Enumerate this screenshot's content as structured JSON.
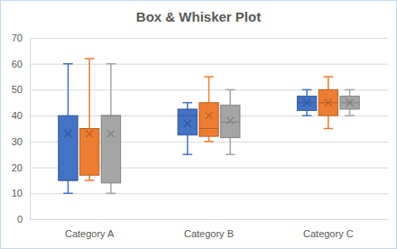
{
  "chart_data": {
    "type": "box",
    "title": "Box & Whisker Plot",
    "categories": [
      "Category A",
      "Category B",
      "Category C"
    ],
    "series": [
      {
        "color": "#4472c4",
        "values": [
          {
            "min": 10,
            "q1": 15,
            "median": 15,
            "q3": 40,
            "max": 60,
            "mean": 33
          },
          {
            "min": 25,
            "q1": 32.5,
            "median": 40,
            "q3": 42.5,
            "max": 45,
            "mean": 37
          },
          {
            "min": 40,
            "q1": 42,
            "median": 45,
            "q3": 47.5,
            "max": 50,
            "mean": 45
          }
        ]
      },
      {
        "color": "#ed7d31",
        "values": [
          {
            "min": 15,
            "q1": 17,
            "median": 35,
            "q3": 35,
            "max": 62,
            "mean": 33
          },
          {
            "min": 30,
            "q1": 32,
            "median": 35,
            "q3": 45,
            "max": 55,
            "mean": 40
          },
          {
            "min": 35,
            "q1": 40,
            "median": 45,
            "q3": 50,
            "max": 55,
            "mean": 45
          }
        ]
      },
      {
        "color": "#a5a5a5",
        "values": [
          {
            "min": 10,
            "q1": 14,
            "median": 40,
            "q3": 40,
            "max": 60,
            "mean": 33
          },
          {
            "min": 25,
            "q1": 31.5,
            "median": 37.5,
            "q3": 44,
            "max": 50,
            "mean": 38
          },
          {
            "min": 40,
            "q1": 42.5,
            "median": 45,
            "q3": 47.5,
            "max": 50,
            "mean": 45
          }
        ]
      }
    ],
    "ylim": [
      0,
      70
    ],
    "yticks": [
      0,
      10,
      20,
      30,
      40,
      50,
      60,
      70
    ],
    "grid": true,
    "marker": "x"
  }
}
